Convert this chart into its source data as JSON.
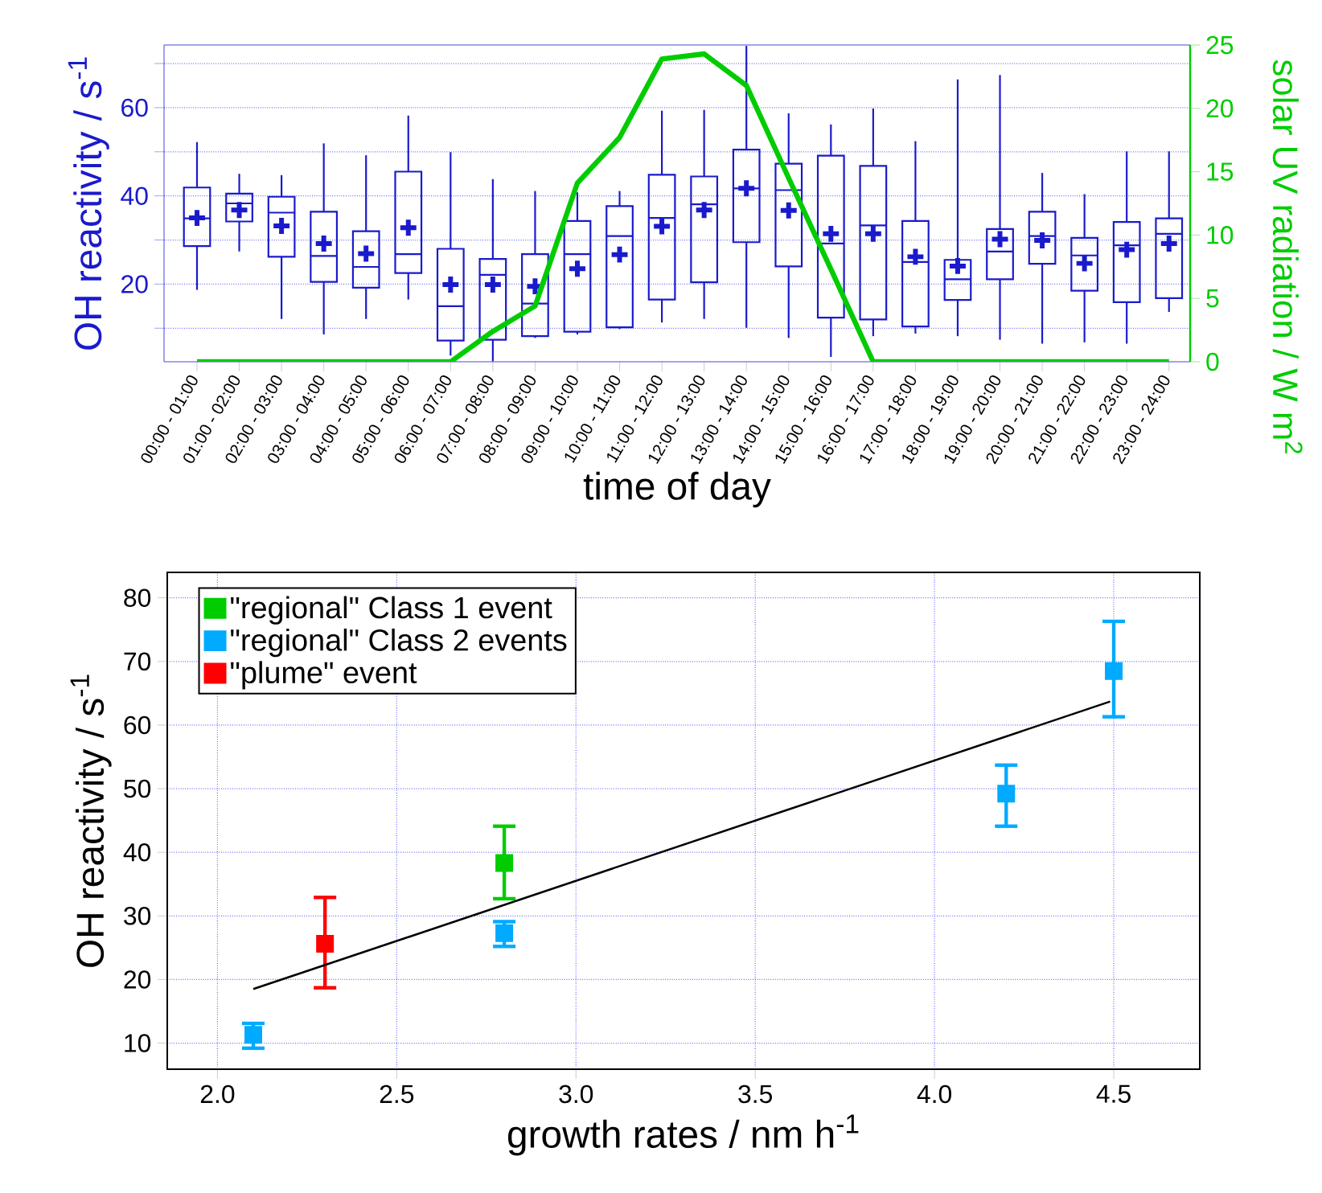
{
  "chart_data": [
    {
      "type": "box",
      "xlabel": "time of day",
      "ylabel": "OH reactivity / s$^{-1}$",
      "y2label": "solar UV radiation / W m$^{2}$",
      "categories": [
        "00:00 - 01:00",
        "01:00 - 02:00",
        "02:00 - 03:00",
        "03:00 - 04:00",
        "04:00 - 05:00",
        "05:00 - 06:00",
        "06:00 - 07:00",
        "07:00 - 08:00",
        "08:00 - 09:00",
        "09:00 - 10:00",
        "10:00 - 11:00",
        "11:00 - 12:00",
        "12:00 - 13:00",
        "13:00 - 14:00",
        "14:00 - 15:00",
        "15:00 - 16:00",
        "16:00 - 17:00",
        "17:00 - 18:00",
        "18:00 - 19:00",
        "19:00 - 20:00",
        "20:00 - 21:00",
        "21:00 - 22:00",
        "22:00 - 23:00",
        "23:00 - 24:00"
      ],
      "ylim": [
        2.4,
        74.2
      ],
      "yticks": [
        {
          "value": 10,
          "label": null
        },
        20,
        {
          "value": 30,
          "label": null
        },
        40,
        {
          "value": 50,
          "label": null
        },
        60,
        {
          "value": 70,
          "label": null
        }
      ],
      "y2lim": [
        0,
        25
      ],
      "y2ticks": [
        0,
        5,
        10,
        15,
        20,
        25
      ],
      "grid": "y",
      "series": [
        {
          "type": "box",
          "color": "#1a1acc",
          "boxes": [
            {
              "low": 18.7,
              "q1": 28.6,
              "median": 34.9,
              "q3": 41.9,
              "high": 52.2,
              "mean": 35.0
            },
            {
              "low": 27.4,
              "q1": 34.2,
              "median": 38.3,
              "q3": 40.5,
              "high": 45.0,
              "mean": 36.8
            },
            {
              "low": 12.1,
              "q1": 26.2,
              "median": 36.2,
              "q3": 39.8,
              "high": 44.7,
              "mean": 33.2
            },
            {
              "low": 8.6,
              "q1": 20.5,
              "median": 26.4,
              "q3": 36.4,
              "high": 51.9,
              "mean": 29.2
            },
            {
              "low": 12.1,
              "q1": 19.2,
              "median": 23.9,
              "q3": 32.0,
              "high": 49.2,
              "mean": 26.9
            },
            {
              "low": 16.5,
              "q1": 22.5,
              "median": 26.8,
              "q3": 45.5,
              "high": 58.2,
              "mean": 32.8
            },
            {
              "low": 3.8,
              "q1": 7.2,
              "median": 15.0,
              "q3": 28.0,
              "high": 49.9,
              "mean": 19.9
            },
            {
              "low": 2.5,
              "q1": 7.4,
              "median": 22.1,
              "q3": 25.7,
              "high": 43.8,
              "mean": 19.9
            },
            {
              "low": 7.8,
              "q1": 8.2,
              "median": 15.6,
              "q3": 26.8,
              "high": 41.1,
              "mean": 19.5
            },
            {
              "low": 8.6,
              "q1": 9.2,
              "median": 26.8,
              "q3": 34.3,
              "high": 40.8,
              "mean": 23.5
            },
            {
              "low": 9.8,
              "q1": 10.2,
              "median": 30.9,
              "q3": 37.7,
              "high": 41.1,
              "mean": 26.7
            },
            {
              "low": 11.3,
              "q1": 16.5,
              "median": 35.0,
              "q3": 44.8,
              "high": 59.3,
              "mean": 33.1
            },
            {
              "low": 12.1,
              "q1": 20.4,
              "median": 38.1,
              "q3": 44.4,
              "high": 59.5,
              "mean": 36.8
            },
            {
              "low": 10.1,
              "q1": 29.5,
              "median": 41.7,
              "q3": 50.5,
              "high": 74.0,
              "mean": 41.7
            },
            {
              "low": 7.8,
              "q1": 24.0,
              "median": 41.3,
              "q3": 47.3,
              "high": 58.7,
              "mean": 36.7
            },
            {
              "low": 3.5,
              "q1": 12.4,
              "median": 29.2,
              "q3": 49.1,
              "high": 56.2,
              "mean": 31.4
            },
            {
              "low": 8.2,
              "q1": 12.0,
              "median": 33.3,
              "q3": 46.8,
              "high": 59.8,
              "mean": 31.4
            },
            {
              "low": 8.8,
              "q1": 10.4,
              "median": 25.0,
              "q3": 34.3,
              "high": 52.4,
              "mean": 26.2
            },
            {
              "low": 8.2,
              "q1": 16.4,
              "median": 21.1,
              "q3": 25.5,
              "high": 66.4,
              "mean": 24.1
            },
            {
              "low": 7.4,
              "q1": 21.1,
              "median": 27.4,
              "q3": 32.5,
              "high": 67.4,
              "mean": 30.2
            },
            {
              "low": 6.5,
              "q1": 24.6,
              "median": 30.9,
              "q3": 36.4,
              "high": 45.2,
              "mean": 29.9
            },
            {
              "low": 6.8,
              "q1": 18.5,
              "median": 26.5,
              "q3": 30.5,
              "high": 40.4,
              "mean": 24.7
            },
            {
              "low": 6.5,
              "q1": 15.9,
              "median": 28.8,
              "q3": 34.1,
              "high": 50.1,
              "mean": 27.8
            },
            {
              "low": 13.7,
              "q1": 16.8,
              "median": 31.4,
              "q3": 34.9,
              "high": 50.1,
              "mean": 29.2
            }
          ]
        },
        {
          "type": "line",
          "axis": "y2",
          "color": "#00cc00",
          "values": [
            0,
            0,
            0,
            0,
            0,
            0,
            0,
            2.4,
            4.4,
            14.1,
            17.7,
            23.9,
            24.3,
            21.8,
            14.5,
            7.3,
            0,
            0,
            0,
            0,
            0,
            0,
            0,
            0
          ]
        }
      ]
    },
    {
      "type": "scatter",
      "xlabel": "growth rates / nm h$^{-1}$",
      "ylabel": "OH reactivity / s$^{-1}$",
      "xlim": [
        1.86,
        4.74
      ],
      "xticks": [
        {
          "value": 2.0,
          "label": "2.0"
        },
        2.5,
        {
          "value": 3.0,
          "label": "3.0"
        },
        3.5,
        {
          "value": 4.0,
          "label": "4.0"
        },
        4.5
      ],
      "ylim": [
        5.9,
        84
      ],
      "yticks": [
        10,
        20,
        30,
        40,
        50,
        60,
        70,
        80
      ],
      "grid": true,
      "legend": "top left",
      "marker": "square",
      "series": [
        {
          "name": "\"regional\" Class 1 event",
          "color": "#00cc00",
          "x": [
            2.8
          ],
          "values": [
            38.3
          ],
          "errors": [
            [
              32.7,
              44.1
            ]
          ]
        },
        {
          "name": "\"regional\" Class 2 events",
          "color": "#00aaff",
          "x": [
            2.1,
            2.8,
            4.2,
            4.5
          ],
          "values": [
            11.3,
            27.3,
            49.2,
            68.5
          ],
          "errors": [
            [
              9.2,
              13.1
            ],
            [
              25.2,
              29.1
            ],
            [
              44.1,
              53.7
            ],
            [
              61.3,
              76.3
            ]
          ]
        },
        {
          "name": "\"plume\" event",
          "color": "#ff0000",
          "x": [
            2.3
          ],
          "values": [
            25.6
          ],
          "errors": [
            [
              18.7,
              32.9
            ]
          ]
        },
        {
          "type": "line",
          "marker": "none",
          "color": "#000000",
          "x": [
            2.1,
            4.49
          ],
          "values": [
            18.5,
            63.7
          ]
        }
      ]
    }
  ]
}
